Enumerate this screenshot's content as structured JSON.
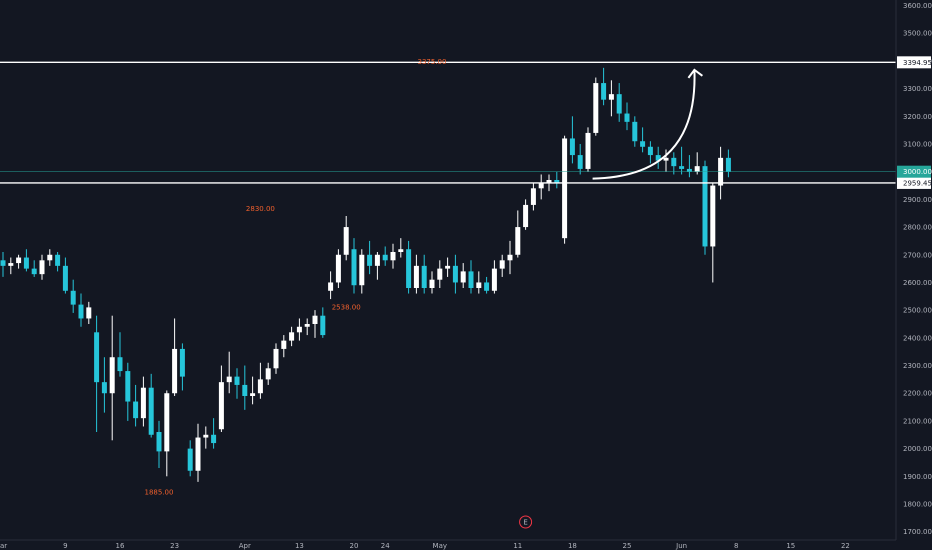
{
  "chart_data": {
    "type": "candlestick",
    "title": "",
    "xlabel": "",
    "ylabel": "",
    "ylim": [
      1670,
      3620
    ],
    "y_ticks": [
      1700,
      1800,
      1900,
      2000,
      2100,
      2200,
      2300,
      2400,
      2500,
      2600,
      2700,
      2800,
      2900,
      3000,
      3100,
      3200,
      3300,
      3400,
      3500,
      3600
    ],
    "y_tick_labels": [
      "1700.00",
      "1800.00",
      "1900.00",
      "2000.00",
      "2100.00",
      "2200.00",
      "2300.00",
      "2400.00",
      "2500.00",
      "2600.00",
      "2700.00",
      "2800.00",
      "2900.00",
      "3000.00",
      "3100.00",
      "3200.00",
      "3300.00",
      "3400.00",
      "3500.00",
      "3600.00"
    ],
    "x_ticks": [
      {
        "label": "9",
        "index": 8
      },
      {
        "label": "16",
        "index": 15
      },
      {
        "label": "23",
        "index": 22
      },
      {
        "label": "Apr",
        "index": 31
      },
      {
        "label": "13",
        "index": 38
      },
      {
        "label": "20",
        "index": 45
      },
      {
        "label": "24",
        "index": 49
      },
      {
        "label": "May",
        "index": 56
      },
      {
        "label": "11",
        "index": 66
      },
      {
        "label": "18",
        "index": 73
      },
      {
        "label": "25",
        "index": 80
      },
      {
        "label": "Jun",
        "index": 87
      },
      {
        "label": "8",
        "index": 94
      },
      {
        "label": "15",
        "index": 101
      },
      {
        "label": "22",
        "index": 108
      }
    ],
    "x_edge_label": "ar",
    "candles": [
      [
        2680,
        2710,
        2620,
        2660
      ],
      [
        2660,
        2690,
        2630,
        2670
      ],
      [
        2670,
        2700,
        2650,
        2690
      ],
      [
        2690,
        2720,
        2640,
        2650
      ],
      [
        2650,
        2680,
        2620,
        2630
      ],
      [
        2630,
        2700,
        2610,
        2680
      ],
      [
        2680,
        2720,
        2660,
        2700
      ],
      [
        2700,
        2710,
        2640,
        2660
      ],
      [
        2660,
        2690,
        2560,
        2570
      ],
      [
        2570,
        2610,
        2490,
        2520
      ],
      [
        2520,
        2560,
        2440,
        2470
      ],
      [
        2470,
        2530,
        2450,
        2510
      ],
      [
        2420,
        2480,
        2060,
        2240
      ],
      [
        2240,
        2330,
        2130,
        2200
      ],
      [
        2200,
        2480,
        2030,
        2330
      ],
      [
        2330,
        2420,
        2260,
        2280
      ],
      [
        2280,
        2310,
        2100,
        2170
      ],
      [
        2170,
        2230,
        2080,
        2110
      ],
      [
        2110,
        2260,
        2080,
        2220
      ],
      [
        2220,
        2270,
        2040,
        2050
      ],
      [
        2060,
        2100,
        1930,
        1990
      ],
      [
        1990,
        2210,
        1900,
        2200
      ],
      [
        2200,
        2470,
        2190,
        2360
      ],
      [
        2360,
        2380,
        2210,
        2260
      ],
      [
        2000,
        2030,
        1900,
        1920
      ],
      [
        1920,
        2090,
        1880,
        2040
      ],
      [
        2040,
        2080,
        2000,
        2050
      ],
      [
        2050,
        2110,
        2000,
        2020
      ],
      [
        2070,
        2300,
        2060,
        2240
      ],
      [
        2240,
        2350,
        2200,
        2260
      ],
      [
        2260,
        2290,
        2180,
        2230
      ],
      [
        2230,
        2300,
        2140,
        2190
      ],
      [
        2190,
        2260,
        2160,
        2200
      ],
      [
        2200,
        2310,
        2180,
        2250
      ],
      [
        2250,
        2310,
        2230,
        2290
      ],
      [
        2290,
        2380,
        2270,
        2360
      ],
      [
        2360,
        2410,
        2330,
        2390
      ],
      [
        2390,
        2440,
        2370,
        2420
      ],
      [
        2420,
        2470,
        2390,
        2440
      ],
      [
        2440,
        2470,
        2410,
        2450
      ],
      [
        2450,
        2500,
        2400,
        2480
      ],
      [
        2480,
        2510,
        2400,
        2410
      ],
      [
        2570,
        2640,
        2540,
        2600
      ],
      [
        2600,
        2720,
        2580,
        2700
      ],
      [
        2700,
        2840,
        2680,
        2800
      ],
      [
        2720,
        2760,
        2560,
        2590
      ],
      [
        2590,
        2720,
        2560,
        2700
      ],
      [
        2700,
        2750,
        2630,
        2660
      ],
      [
        2660,
        2710,
        2610,
        2700
      ],
      [
        2700,
        2730,
        2660,
        2680
      ],
      [
        2680,
        2740,
        2650,
        2710
      ],
      [
        2710,
        2760,
        2690,
        2720
      ],
      [
        2720,
        2750,
        2560,
        2580
      ],
      [
        2580,
        2700,
        2560,
        2660
      ],
      [
        2660,
        2700,
        2560,
        2580
      ],
      [
        2580,
        2640,
        2560,
        2610
      ],
      [
        2610,
        2680,
        2580,
        2650
      ],
      [
        2650,
        2690,
        2620,
        2660
      ],
      [
        2660,
        2700,
        2560,
        2600
      ],
      [
        2600,
        2670,
        2580,
        2640
      ],
      [
        2640,
        2680,
        2560,
        2580
      ],
      [
        2580,
        2640,
        2560,
        2600
      ],
      [
        2600,
        2620,
        2560,
        2570
      ],
      [
        2570,
        2680,
        2560,
        2650
      ],
      [
        2650,
        2700,
        2620,
        2680
      ],
      [
        2680,
        2750,
        2630,
        2700
      ],
      [
        2700,
        2860,
        2690,
        2800
      ],
      [
        2800,
        2900,
        2790,
        2880
      ]
    ],
    "horizontal_levels": [
      {
        "value": 3394.95,
        "label": "3394.95",
        "color": "#ffffff"
      },
      {
        "value": 2959.45,
        "label": "2959.45",
        "color": "#ffffff"
      }
    ],
    "current_price": {
      "value": 3000.0,
      "label": "3000.00",
      "color": "#26a69a"
    },
    "annotations": [
      {
        "text": "3375.00",
        "value": 3375.0,
        "index": 55
      },
      {
        "text": "2830.00",
        "value": 2830.0,
        "index": 33
      },
      {
        "text": "2538.00",
        "value": 2538.0,
        "index": 44
      },
      {
        "text": "1885.00",
        "value": 1885.0,
        "index": 20
      }
    ],
    "event_marker": {
      "text": "E",
      "index": 67
    },
    "forecast_arrow": {
      "from_index": 72,
      "from_value": 2975,
      "to_index": 88,
      "to_value": 3375
    },
    "grid": false
  },
  "colors": {
    "background": "#131722",
    "up_candle": "#ffffff",
    "down_candle": "#26c6da",
    "axis_text": "#b2b5be",
    "annotation_text": "#f0602d",
    "event_marker": "#f23645"
  }
}
